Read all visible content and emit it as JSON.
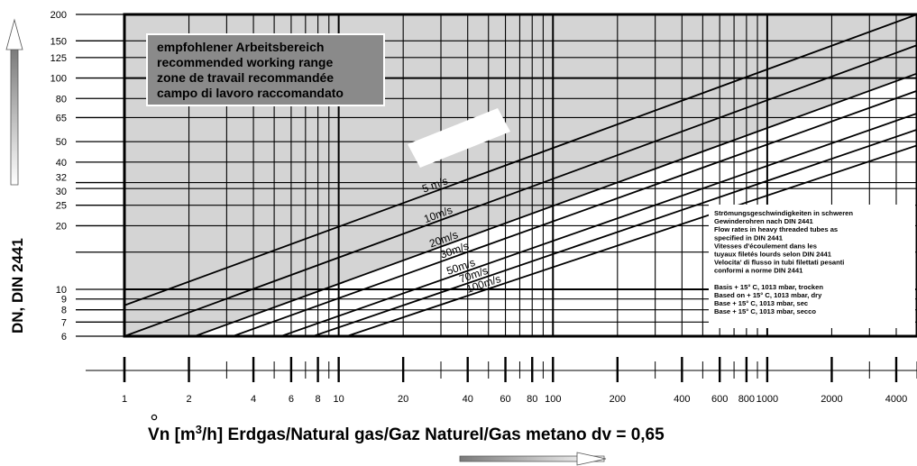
{
  "chart_data": {
    "type": "line",
    "ylabel": "DN, DIN 2441",
    "xlabel_main": "n [m",
    "xlabel_sup": "3",
    "xlabel_rest": "/h] Erdgas/Natural gas/Gaz Naturel/Gas metano dv = 0,65",
    "xlabel_symbol": "V",
    "x_scale": "log",
    "y_scale": "log",
    "xlim": [
      1,
      5000
    ],
    "ylim": [
      6,
      200
    ],
    "x_tick_labels": [
      "1",
      "2",
      "4",
      "6",
      "8",
      "10",
      "20",
      "40",
      "60",
      "80",
      "100",
      "200",
      "400",
      "600",
      "800",
      "1000",
      "2000",
      "4000"
    ],
    "x_tick_values": [
      1,
      2,
      4,
      6,
      8,
      10,
      20,
      40,
      60,
      80,
      100,
      200,
      400,
      600,
      800,
      1000,
      2000,
      4000
    ],
    "y_tick_labels": [
      "200",
      "150",
      "125",
      "100",
      "80",
      "65",
      "50",
      "40",
      "32",
      "30",
      "25",
      "20",
      "10",
      "9",
      "8",
      "7",
      "6"
    ],
    "y_tick_values": [
      200,
      150,
      125,
      100,
      80,
      65,
      50,
      40,
      32,
      30,
      25,
      20,
      10,
      9,
      8,
      7,
      6
    ],
    "y_grid_values": [
      200,
      150,
      125,
      100,
      80,
      65,
      50,
      40,
      32,
      30,
      25,
      20,
      15,
      10,
      9,
      8,
      7,
      6
    ],
    "recommended_range_box": [
      "empfohlener Arbeitsbereich",
      "recommended working range",
      "zone de travail recommandée",
      "campo di lavoro raccomandato"
    ],
    "series": [
      {
        "name": "5 m/s",
        "points": [
          [
            1,
            8.4
          ],
          [
            5000,
            200
          ]
        ]
      },
      {
        "name": "10m/s",
        "points": [
          [
            1,
            6
          ],
          [
            5000,
            143
          ]
        ]
      },
      {
        "name": "20m/s",
        "points": [
          [
            1.6,
            5.4
          ],
          [
            5000,
            105
          ]
        ]
      },
      {
        "name": "30m/s",
        "points": [
          [
            2.4,
            5.4
          ],
          [
            5000,
            87
          ]
        ]
      },
      {
        "name": "50m/s",
        "points": [
          [
            4,
            5.4
          ],
          [
            5000,
            68
          ]
        ]
      },
      {
        "name": "70m/s",
        "points": [
          [
            5.6,
            5.4
          ],
          [
            5000,
            57
          ]
        ]
      },
      {
        "name": "100m/s",
        "points": [
          [
            8,
            5.4
          ],
          [
            5000,
            48
          ]
        ]
      }
    ],
    "velocity_labels": [
      "5 m/s",
      "10m/s",
      "20m/s",
      "30m/s",
      "50m/s",
      "70m/s",
      "100m/s"
    ],
    "note": [
      "Strömungsgeschwindigkeiten in schweren",
      "Gewinderohren nach DIN 2441",
      "Flow rates in heavy threaded tubes as",
      "specified in DIN 2441",
      "Vitesses d'écoulement dans les",
      "tuyaux filetés lourds selon DIN 2441",
      "Velocita' di flusso in tubi filettati pesanti",
      "conformi a norme DIN 2441",
      "",
      "Basis + 15° C, 1013 mbar, trocken",
      "Based on + 15° C, 1013 mbar, dry",
      "Base        + 15° C, 1013 mbar, sec",
      "Base        + 15° C, 1013 mbar, secco"
    ],
    "colors": {
      "recommended_area": "#d4d4d4",
      "label_box": "#8a8a8a",
      "lines": "#000000"
    }
  }
}
